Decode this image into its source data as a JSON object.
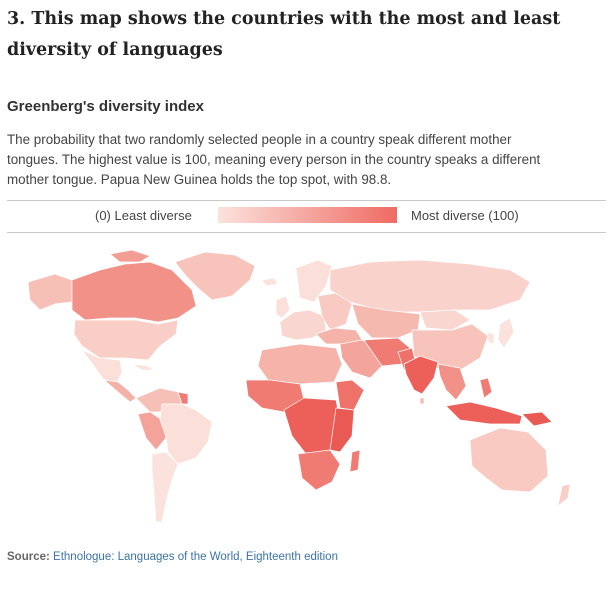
{
  "headline": {
    "line1": "3. This map shows the countries with the most and least",
    "line2": "diversity of languages"
  },
  "subtitle": "Greenberg's diversity index",
  "description": {
    "line1": "The probability that two randomly selected people in a country speak different mother",
    "line2": "tongues. The highest value is 100, meaning every person in the country speaks a different",
    "line3": "mother tongue. Papua New Guinea holds the top spot, with 98.8."
  },
  "legend": {
    "low_label": "(0) Least diverse",
    "high_label": "Most diverse (100)",
    "scale": [
      0,
      100
    ],
    "color_low": "#fbe2dd",
    "color_high": "#ef6b63"
  },
  "map": {
    "top_country": "Papua New Guinea",
    "top_value": 98.8
  },
  "source": {
    "label": "Source:",
    "text": "Ethnologue: Languages of the World, Eighteenth edition"
  }
}
